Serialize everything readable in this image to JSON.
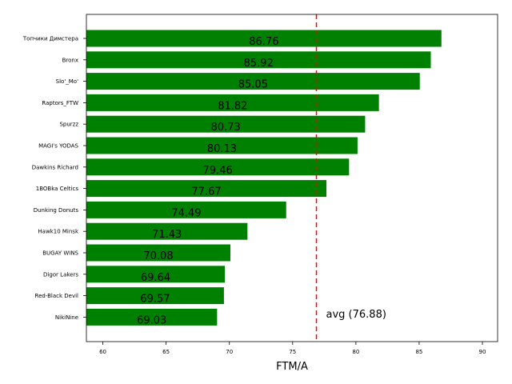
{
  "chart_data": {
    "type": "bar",
    "orientation": "horizontal",
    "categories": [
      "Топчики Димстера",
      "Bronx",
      "Slo'_Mo'",
      "Raptors_FTW",
      "Spurzz",
      "MAGI's YODAS",
      "Dawkins Richard",
      "1BOBka Celtics",
      "Dunking Donuts",
      "Hawk10 Minsk",
      "BUGAY WINS",
      "Digor Lakers",
      "Red-Black Devil",
      "NikiNine"
    ],
    "values": [
      86.76,
      85.92,
      85.05,
      81.82,
      80.73,
      80.13,
      79.46,
      77.67,
      74.49,
      71.43,
      70.08,
      69.64,
      69.57,
      69.03
    ],
    "value_labels": [
      "86.76",
      "85.92",
      "85.05",
      "81.82",
      "80.73",
      "80.13",
      "79.46",
      "77.67",
      "74.49",
      "71.43",
      "70.08",
      "69.64",
      "69.57",
      "69.03"
    ],
    "xlabel": "FTM/A",
    "ylabel": "",
    "title": "",
    "xlim": [
      58.7,
      91.2
    ],
    "xticks": [
      60,
      65,
      70,
      75,
      80,
      85,
      90
    ],
    "bar_color": "#008000",
    "reference_line": {
      "value": 76.88,
      "label": "avg (76.88)",
      "color": "#ff0000",
      "style": "dashed"
    },
    "grid": false
  }
}
